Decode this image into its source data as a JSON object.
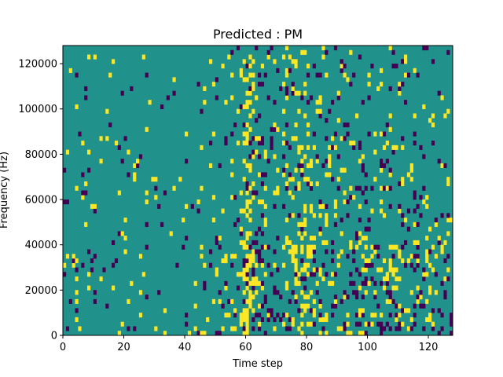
{
  "chart_data": {
    "type": "heatmap",
    "title": "Predicted : PM",
    "xlabel": "Time step",
    "ylabel": "Frequency (Hz)",
    "xlim": [
      0,
      128
    ],
    "ylim": [
      0,
      128000
    ],
    "xticks": [
      "0",
      "20",
      "40",
      "60",
      "80",
      "100",
      "120"
    ],
    "yticks": [
      "0",
      "20000",
      "40000",
      "60000",
      "80000",
      "100000",
      "120000"
    ],
    "grid": false,
    "legend": "none",
    "colors": {
      "background": "#21918c",
      "high": "#fde725",
      "low": "#440154"
    },
    "time_steps": 128,
    "freq_bins": 64,
    "yellow_density": [
      0.02,
      0.03,
      0.02,
      0.02,
      0.04,
      0.03,
      0.02,
      0.02,
      0.03,
      0.02,
      0.02,
      0.02,
      0.02,
      0.03,
      0.02,
      0.03,
      0.02,
      0.03,
      0.02,
      0.02,
      0.03,
      0.03,
      0.04,
      0.03,
      0.03,
      0.03,
      0.02,
      0.02,
      0.02,
      0.02,
      0.02,
      0.02,
      0.03,
      0.02,
      0.02,
      0.02,
      0.02,
      0.02,
      0.02,
      0.02,
      0.02,
      0.02,
      0.02,
      0.03,
      0.03,
      0.04,
      0.04,
      0.04,
      0.04,
      0.04,
      0.05,
      0.05,
      0.05,
      0.05,
      0.05,
      0.06,
      0.06,
      0.07,
      0.1,
      0.3,
      0.4,
      0.35,
      0.2,
      0.08,
      0.08,
      0.07,
      0.06,
      0.06,
      0.06,
      0.06,
      0.06,
      0.07,
      0.08,
      0.1,
      0.12,
      0.14,
      0.16,
      0.18,
      0.2,
      0.22,
      0.2,
      0.18,
      0.14,
      0.1,
      0.1,
      0.08,
      0.08,
      0.07,
      0.06,
      0.06,
      0.06,
      0.07,
      0.06,
      0.06,
      0.06,
      0.06,
      0.06,
      0.06,
      0.06,
      0.06,
      0.06,
      0.06,
      0.06,
      0.06,
      0.07,
      0.07,
      0.07,
      0.07,
      0.08,
      0.1,
      0.12,
      0.1,
      0.08,
      0.07,
      0.07,
      0.07,
      0.07,
      0.06,
      0.06,
      0.06,
      0.06,
      0.06,
      0.06,
      0.06,
      0.06,
      0.06,
      0.06,
      0.06
    ],
    "purple_density": [
      0.02,
      0.03,
      0.02,
      0.02,
      0.03,
      0.02,
      0.02,
      0.02,
      0.03,
      0.02,
      0.02,
      0.02,
      0.02,
      0.02,
      0.02,
      0.02,
      0.02,
      0.03,
      0.02,
      0.02,
      0.02,
      0.02,
      0.02,
      0.02,
      0.02,
      0.02,
      0.02,
      0.02,
      0.02,
      0.02,
      0.02,
      0.03,
      0.02,
      0.02,
      0.02,
      0.02,
      0.03,
      0.02,
      0.02,
      0.02,
      0.02,
      0.02,
      0.02,
      0.02,
      0.02,
      0.02,
      0.02,
      0.02,
      0.02,
      0.03,
      0.03,
      0.03,
      0.03,
      0.03,
      0.03,
      0.03,
      0.04,
      0.05,
      0.06,
      0.08,
      0.08,
      0.08,
      0.1,
      0.14,
      0.16,
      0.14,
      0.12,
      0.1,
      0.1,
      0.08,
      0.08,
      0.08,
      0.07,
      0.06,
      0.06,
      0.06,
      0.06,
      0.06,
      0.06,
      0.06,
      0.06,
      0.06,
      0.06,
      0.06,
      0.06,
      0.06,
      0.06,
      0.06,
      0.07,
      0.07,
      0.07,
      0.07,
      0.07,
      0.07,
      0.07,
      0.07,
      0.07,
      0.07,
      0.07,
      0.07,
      0.07,
      0.07,
      0.07,
      0.07,
      0.07,
      0.07,
      0.07,
      0.07,
      0.07,
      0.07,
      0.07,
      0.07,
      0.07,
      0.07,
      0.07,
      0.07,
      0.07,
      0.07,
      0.07,
      0.07,
      0.07,
      0.07,
      0.07,
      0.07,
      0.07,
      0.07,
      0.07,
      0.07
    ],
    "seed": 7
  }
}
